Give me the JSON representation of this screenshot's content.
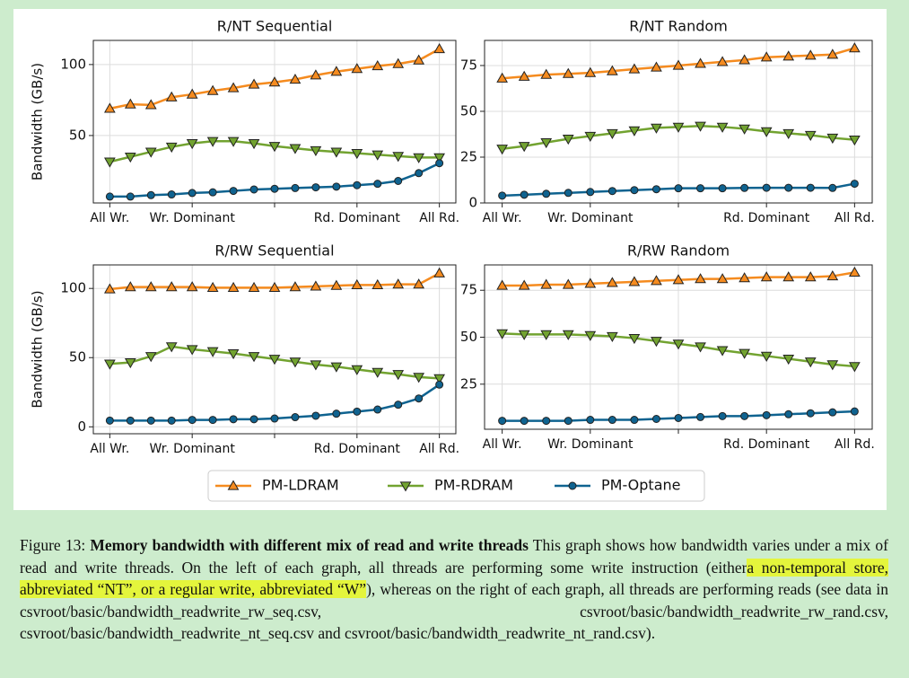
{
  "chart_data": [
    {
      "type": "line",
      "title": "R/NT Sequential",
      "ylabel": "Bandwidth (GB/s)",
      "x": [
        0,
        1,
        2,
        3,
        4,
        5,
        6,
        7,
        8,
        9,
        10,
        11,
        12,
        13,
        14,
        15,
        16
      ],
      "xlim": [
        -0.8,
        16.8
      ],
      "xticks": [
        {
          "value": 0,
          "label": "All Wr."
        },
        {
          "value": 4,
          "label": "Wr. Dominant"
        },
        {
          "value": 8,
          "label": null
        },
        {
          "value": 12,
          "label": "Rd. Dominant"
        },
        {
          "value": 16,
          "label": "All Rd."
        }
      ],
      "ylim": [
        2.5,
        117
      ],
      "yticks": [
        50,
        100
      ],
      "grid": true,
      "series": [
        {
          "name": "PM-LDRAM",
          "color": "#f58b1f",
          "marker": "^",
          "values": [
            69,
            72,
            71.5,
            77,
            79,
            81.5,
            83.5,
            86,
            87.5,
            89.5,
            92.5,
            95,
            97,
            99,
            100.5,
            103,
            111
          ]
        },
        {
          "name": "PM-RDRAM",
          "color": "#72a330",
          "marker": "v",
          "values": [
            31.5,
            35,
            38.5,
            42,
            44.5,
            46,
            46,
            44.5,
            42.5,
            41,
            39.5,
            38.5,
            37.5,
            36.5,
            35.5,
            34.5,
            34.5
          ]
        },
        {
          "name": "PM-Optane",
          "color": "#0f6390",
          "marker": "o",
          "values": [
            7,
            7,
            8,
            8.5,
            9.5,
            10,
            11,
            12,
            12.5,
            13,
            13.5,
            14,
            15,
            16,
            18,
            23.5,
            30.5
          ]
        }
      ]
    },
    {
      "type": "line",
      "title": "R/NT Random",
      "x": [
        0,
        1,
        2,
        3,
        4,
        5,
        6,
        7,
        8,
        9,
        10,
        11,
        12,
        13,
        14,
        15,
        16
      ],
      "xlim": [
        -0.8,
        16.8
      ],
      "xticks": [
        {
          "value": 0,
          "label": "All Wr."
        },
        {
          "value": 4,
          "label": "Wr. Dominant"
        },
        {
          "value": 8,
          "label": null
        },
        {
          "value": 12,
          "label": "Rd. Dominant"
        },
        {
          "value": 16,
          "label": "All Rd."
        }
      ],
      "ylim": [
        0,
        88.7
      ],
      "yticks": [
        0,
        25,
        50,
        75
      ],
      "grid": true,
      "series": [
        {
          "name": "PM-LDRAM",
          "color": "#f58b1f",
          "marker": "^",
          "values": [
            68,
            69,
            70,
            70.5,
            71,
            72,
            73,
            74,
            75,
            76,
            77,
            78,
            79.5,
            80,
            80.5,
            81,
            84.5
          ]
        },
        {
          "name": "PM-RDRAM",
          "color": "#72a330",
          "marker": "v",
          "values": [
            29.5,
            31,
            33,
            35,
            36.5,
            38,
            39.5,
            41,
            41.5,
            42,
            41.5,
            40.5,
            39,
            38,
            37,
            35.5,
            34.5
          ]
        },
        {
          "name": "PM-Optane",
          "color": "#0f6390",
          "marker": "o",
          "values": [
            4,
            4.5,
            5,
            5.5,
            6,
            6.5,
            7,
            7.5,
            8,
            8,
            8,
            8.2,
            8.3,
            8.3,
            8.3,
            8.2,
            10.5
          ]
        }
      ]
    },
    {
      "type": "line",
      "title": "R/RW Sequential",
      "ylabel": "Bandwidth (GB/s)",
      "x": [
        0,
        1,
        2,
        3,
        4,
        5,
        6,
        7,
        8,
        9,
        10,
        11,
        12,
        13,
        14,
        15,
        16
      ],
      "xlim": [
        -0.8,
        16.8
      ],
      "xticks": [
        {
          "value": 0,
          "label": "All Wr."
        },
        {
          "value": 4,
          "label": "Wr. Dominant"
        },
        {
          "value": 8,
          "label": null
        },
        {
          "value": 12,
          "label": "Rd. Dominant"
        },
        {
          "value": 16,
          "label": "All Rd."
        }
      ],
      "ylim": [
        -5,
        117
      ],
      "yticks": [
        0,
        50,
        100
      ],
      "grid": true,
      "series": [
        {
          "name": "PM-LDRAM",
          "color": "#f58b1f",
          "marker": "^",
          "values": [
            99.5,
            101,
            101,
            101,
            101,
            100.5,
            100.5,
            100.5,
            100.5,
            101,
            101.5,
            102,
            102.5,
            102.5,
            103,
            103,
            111
          ]
        },
        {
          "name": "PM-RDRAM",
          "color": "#72a330",
          "marker": "v",
          "values": [
            45.5,
            46.5,
            51,
            58,
            56,
            54.5,
            53,
            51,
            49,
            47,
            45,
            43.5,
            41.5,
            39.5,
            38,
            36,
            35
          ]
        },
        {
          "name": "PM-Optane",
          "color": "#0f6390",
          "marker": "o",
          "values": [
            4.5,
            4.5,
            4.5,
            4.5,
            5,
            5,
            5.5,
            5.5,
            6,
            7,
            8,
            9.5,
            11,
            12.5,
            16,
            20.5,
            30.5
          ]
        }
      ]
    },
    {
      "type": "line",
      "title": "R/RW Random",
      "x": [
        0,
        1,
        2,
        3,
        4,
        5,
        6,
        7,
        8,
        9,
        10,
        11,
        12,
        13,
        14,
        15,
        16
      ],
      "xlim": [
        -0.8,
        16.8
      ],
      "xticks": [
        {
          "value": 0,
          "label": "All Wr."
        },
        {
          "value": 4,
          "label": "Wr. Dominant"
        },
        {
          "value": 8,
          "label": null
        },
        {
          "value": 12,
          "label": "Rd. Dominant"
        },
        {
          "value": 16,
          "label": "All Rd."
        }
      ],
      "ylim": [
        1,
        88.5
      ],
      "yticks": [
        25,
        50,
        75
      ],
      "grid": true,
      "series": [
        {
          "name": "PM-LDRAM",
          "color": "#f58b1f",
          "marker": "^",
          "values": [
            77.5,
            77.5,
            78,
            78,
            78.5,
            79,
            79.5,
            80,
            80.5,
            81,
            81,
            81.5,
            82,
            82,
            82,
            82.5,
            84.5
          ]
        },
        {
          "name": "PM-RDRAM",
          "color": "#72a330",
          "marker": "v",
          "values": [
            52,
            51.5,
            51.5,
            51.5,
            51,
            50.5,
            49.5,
            48,
            46.5,
            45,
            43,
            41.5,
            40,
            38.5,
            37,
            35.5,
            34.5
          ]
        },
        {
          "name": "PM-Optane",
          "color": "#0f6390",
          "marker": "o",
          "values": [
            5.5,
            5.5,
            5.5,
            5.5,
            6,
            6,
            6,
            6.5,
            7,
            7.5,
            8,
            8,
            8.5,
            9,
            9.5,
            10,
            10.5
          ]
        }
      ]
    }
  ],
  "caption": {
    "label": "Figure 13:",
    "title": "Memory bandwidth with different mix of read and write threads",
    "text_before": "This graph shows how bandwidth varies under a mix of read and write threads.  On the left of each graph, all threads are performing some write instruction (either",
    "highlight": "a non-temporal store, abbreviated “NT”, or a regular write, abbreviated “W”",
    "text_after": "), whereas on the right of each graph, all threads are performing reads (see data in csvroot/basic/bandwidth_readwrite_rw_seq.csv, csvroot/basic/bandwidth_readwrite_rw_rand.csv, csvroot/basic/bandwidth_readwrite_nt_seq.csv and csvroot/basic/bandwidth_readwrite_nt_rand.csv)."
  }
}
